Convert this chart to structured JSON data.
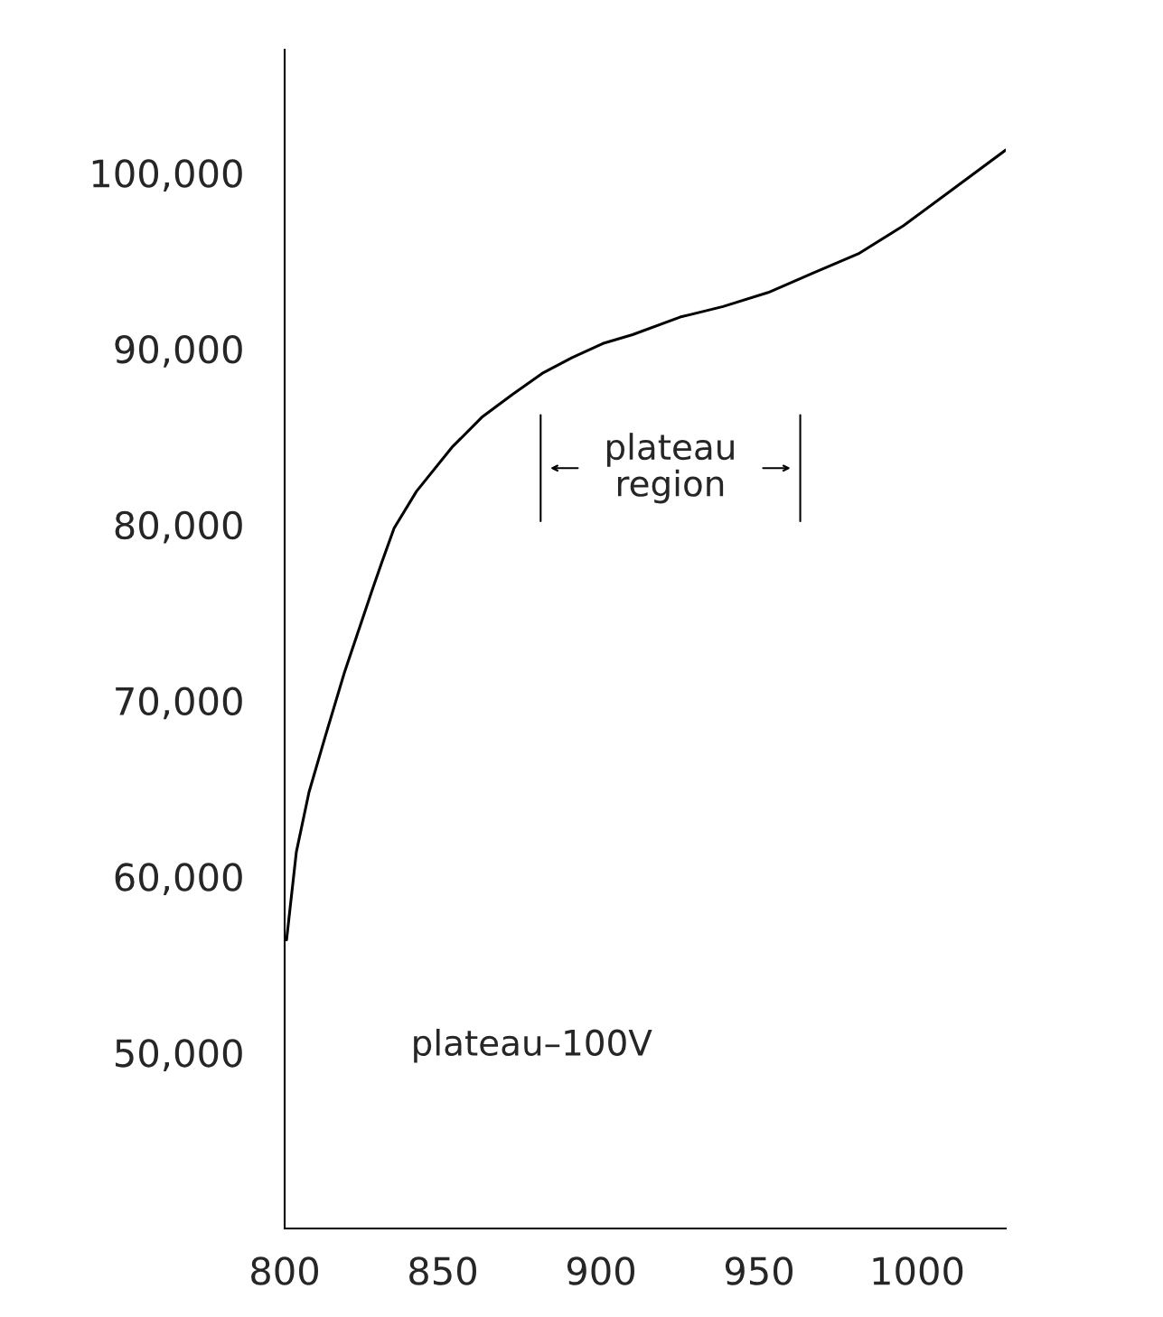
{
  "chart_data": {
    "type": "line",
    "x": [
      800.6,
      803.7,
      807.7,
      812.9,
      818.9,
      827.7,
      830.6,
      834.6,
      841.7,
      852.9,
      862.3,
      872,
      881.4,
      890.9,
      900.6,
      910,
      925,
      938.6,
      952.9,
      967,
      981.4,
      995.7,
      1010,
      1028
    ],
    "series": [
      {
        "color": "#000000",
        "values": [
          56400,
          61400,
          64800,
          68000,
          71600,
          76300,
          77800,
          79800,
          81900,
          84400,
          86100,
          87400,
          88600,
          89500,
          90300,
          90800,
          91800,
          92400,
          93200,
          94300,
          95400,
          97000,
          98900,
          101300
        ]
      }
    ],
    "xlim": [
      800,
      1028
    ],
    "xticks": [
      800,
      850,
      900,
      950,
      1000
    ],
    "ylim": [
      40000,
      107000
    ],
    "yticks": [
      {
        "value": 50000,
        "label": "50,000"
      },
      {
        "value": 60000,
        "label": "60,000"
      },
      {
        "value": 70000,
        "label": "70,000"
      },
      {
        "value": 80000,
        "label": "80,000"
      },
      {
        "value": 90000,
        "label": "90,000"
      },
      {
        "value": 100000,
        "label": "100,000"
      }
    ],
    "annotations": [
      "plateau\nregion",
      "plateau–100V"
    ],
    "grid": false,
    "legend": false,
    "marker": "none",
    "line_style": "solid"
  }
}
